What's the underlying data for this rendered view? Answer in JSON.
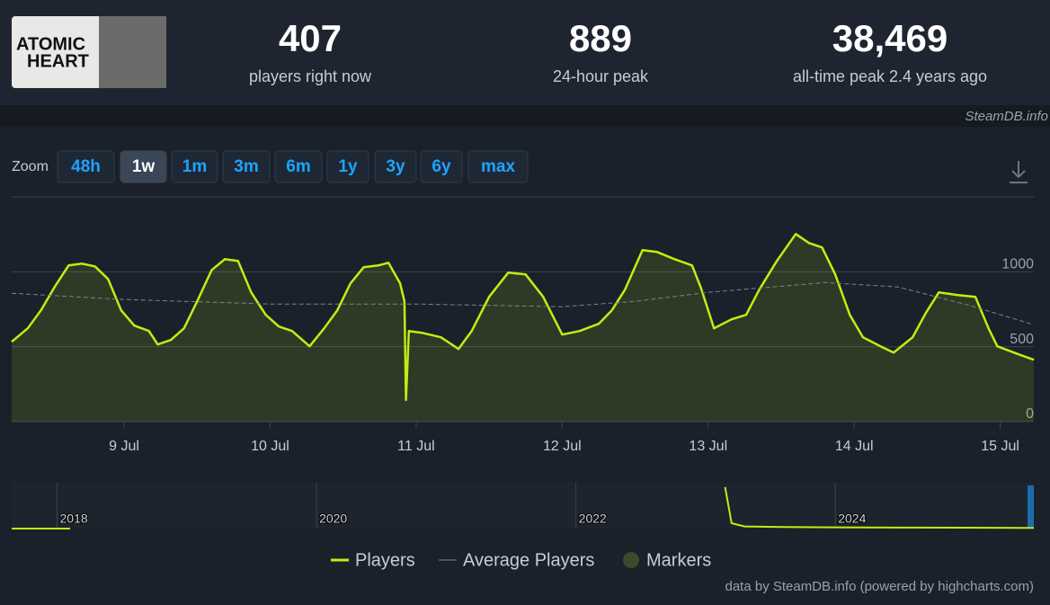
{
  "header": {
    "logo": [
      "ATOMIC",
      "HEART"
    ],
    "stats": [
      {
        "value": "407",
        "label": "players right now"
      },
      {
        "value": "889",
        "label": "24-hour peak"
      },
      {
        "value": "38,469",
        "label": "all-time peak 2.4 years ago"
      }
    ],
    "watermark": "SteamDB.info"
  },
  "zoom": {
    "label": "Zoom",
    "buttons": [
      "48h",
      "1w",
      "1m",
      "3m",
      "6m",
      "1y",
      "3y",
      "6y",
      "max"
    ],
    "active": 1
  },
  "chart_data": [
    {
      "type": "line",
      "xlim": [
        8.23,
        15.23
      ],
      "xticks": [
        {
          "value": 9,
          "label": "9 Jul"
        },
        {
          "value": 10,
          "label": "10 Jul"
        },
        {
          "value": 11,
          "label": "11 Jul"
        },
        {
          "value": 12,
          "label": "12 Jul"
        },
        {
          "value": 13,
          "label": "13 Jul"
        },
        {
          "value": 14,
          "label": "14 Jul"
        },
        {
          "value": 15,
          "label": "15 Jul"
        }
      ],
      "ylim": [
        0,
        1500
      ],
      "yticks": [
        0,
        500,
        1000
      ],
      "grid": true,
      "series": [
        {
          "name": "Players",
          "color": "#bfef12",
          "area": true,
          "x": [
            8.23,
            8.34,
            8.43,
            8.52,
            8.62,
            8.71,
            8.8,
            8.89,
            8.98,
            9.07,
            9.17,
            9.23,
            9.32,
            9.41,
            9.5,
            9.6,
            9.69,
            9.78,
            9.87,
            9.97,
            10.06,
            10.15,
            10.27,
            10.37,
            10.46,
            10.55,
            10.64,
            10.74,
            10.81,
            10.89,
            10.92,
            10.93,
            10.95,
            11.04,
            11.17,
            11.29,
            11.38,
            11.5,
            11.63,
            11.75,
            11.87,
            12.0,
            12.12,
            12.25,
            12.34,
            12.43,
            12.55,
            12.65,
            12.77,
            12.89,
            12.95,
            13.04,
            13.16,
            13.26,
            13.35,
            13.47,
            13.6,
            13.69,
            13.78,
            13.87,
            13.97,
            14.06,
            14.18,
            14.27,
            14.4,
            14.49,
            14.58,
            14.71,
            14.83,
            14.92,
            14.98,
            15.11,
            15.23
          ],
          "values": [
            533,
            623,
            743,
            893,
            1042,
            1054,
            1036,
            952,
            743,
            641,
            605,
            515,
            545,
            623,
            803,
            1012,
            1084,
            1072,
            863,
            713,
            635,
            605,
            503,
            623,
            743,
            922,
            1030,
            1042,
            1060,
            922,
            803,
            144,
            605,
            593,
            563,
            485,
            605,
            833,
            994,
            982,
            833,
            581,
            605,
            653,
            743,
            881,
            1144,
            1132,
            1084,
            1042,
            893,
            623,
            683,
            713,
            881,
            1072,
            1252,
            1192,
            1162,
            982,
            713,
            563,
            503,
            461,
            563,
            725,
            863,
            845,
            833,
            623,
            503,
            455,
            413
          ]
        },
        {
          "name": "Average Players",
          "color": "#7d838c",
          "dash": true,
          "x": [
            8.23,
            9.0,
            10.0,
            11.0,
            12.0,
            12.5,
            13.0,
            13.8,
            14.3,
            14.8,
            15.23
          ],
          "values": [
            857,
            815,
            785,
            785,
            767,
            803,
            863,
            928,
            899,
            773,
            647
          ]
        }
      ],
      "markers": {
        "name": "Markers",
        "color": "#3e4a2b"
      }
    },
    {
      "type": "line",
      "xlim": [
        2017.65,
        2025.53
      ],
      "xticks": [
        2018,
        2020,
        2022,
        2024
      ],
      "ylim": [
        0,
        40000
      ],
      "grid": true,
      "series": [
        {
          "name": "Players",
          "color": "#bfef12",
          "x": [
            2017.65,
            2018.1,
            2023.1,
            2023.15,
            2023.2,
            2023.3,
            2023.6,
            2024.0,
            2024.5,
            2025.0,
            2025.53
          ],
          "values": [
            0,
            0,
            null,
            38469,
            5000,
            2000,
            1500,
            1200,
            900,
            800,
            600
          ]
        }
      ]
    }
  ],
  "credits": "data by SteamDB.info (powered by highcharts.com)"
}
